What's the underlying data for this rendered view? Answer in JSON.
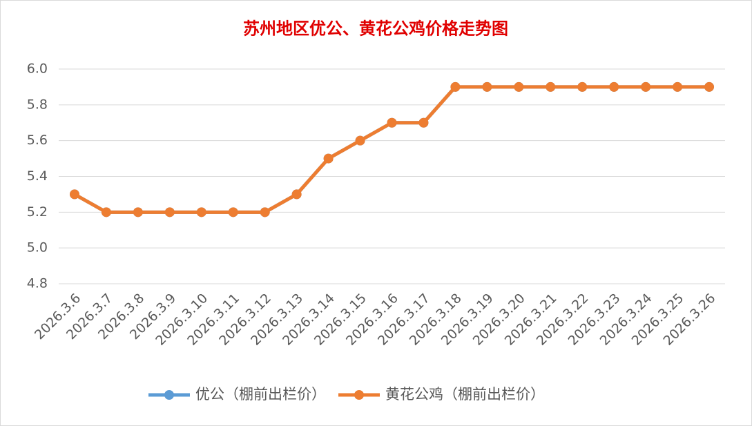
{
  "chart_data": {
    "type": "line",
    "title": "苏州地区优公、黄花公鸡价格走势图",
    "categories": [
      "2026.3.6",
      "2026.3.7",
      "2026.3.8",
      "2026.3.9",
      "2026.3.10",
      "2026.3.11",
      "2026.3.12",
      "2026.3.13",
      "2026.3.14",
      "2026.3.15",
      "2026.3.16",
      "2026.3.17",
      "2026.3.18",
      "2026.3.19",
      "2026.3.20",
      "2026.3.21",
      "2026.3.22",
      "2026.3.23",
      "2026.3.24",
      "2026.3.25",
      "2026.3.26"
    ],
    "series": [
      {
        "name": "优公（棚前出栏价）",
        "color": "#5b9bd5",
        "values": [
          5.3,
          5.2,
          5.2,
          5.2,
          5.2,
          5.2,
          5.2,
          5.3,
          5.5,
          5.6,
          5.7,
          5.7,
          5.9,
          5.9,
          5.9,
          5.9,
          5.9,
          5.9,
          5.9,
          5.9,
          5.9
        ]
      },
      {
        "name": "黄花公鸡（棚前出栏价）",
        "color": "#ed7d31",
        "values": [
          5.3,
          5.2,
          5.2,
          5.2,
          5.2,
          5.2,
          5.2,
          5.3,
          5.5,
          5.6,
          5.7,
          5.7,
          5.9,
          5.9,
          5.9,
          5.9,
          5.9,
          5.9,
          5.9,
          5.9,
          5.9
        ]
      }
    ],
    "ylim": [
      4.8,
      6.0
    ],
    "yticks": [
      {
        "value": 4.8,
        "label": "4.8"
      },
      {
        "value": 5.0,
        "label": "5.0"
      },
      {
        "value": 5.2,
        "label": "5.2"
      },
      {
        "value": 5.4,
        "label": "5.4"
      },
      {
        "value": 5.6,
        "label": "5.6"
      },
      {
        "value": 5.8,
        "label": "5.8"
      },
      {
        "value": 6.0,
        "label": "6.0"
      }
    ],
    "grid": true,
    "legend": "bottom",
    "title_color": "#e00000"
  }
}
